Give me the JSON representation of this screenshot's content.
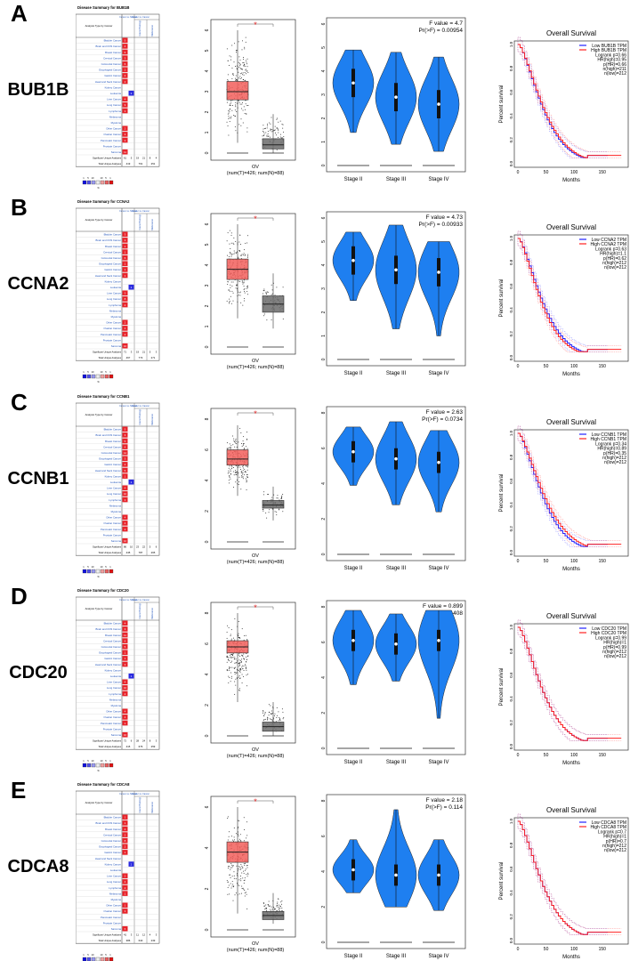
{
  "oncomine_common": {
    "analysis_header": "Analysis Type by Cancer",
    "col_groups": [
      "Cancer vs. Normal",
      "Cancer vs. Cancer"
    ],
    "sub_cols": [
      "Cancer Histology",
      "Multi-cancer"
    ],
    "cancers": [
      "Bladder Cancer",
      "Brain and CNS Cancer",
      "Breast Cancer",
      "Cervical Cancer",
      "Colorectal Cancer",
      "Esophageal Cancer",
      "Gastric Cancer",
      "Head and Neck Cancer",
      "Kidney Cancer",
      "Leukemia",
      "Liver Cancer",
      "Lung Cancer",
      "Lymphoma",
      "Melanoma",
      "Myeloma",
      "Other Cancer",
      "Ovarian Cancer",
      "Pancreatic Cancer",
      "Prostate Cancer",
      "Sarcoma"
    ],
    "sig_label": "Significant Unique Analyses",
    "total_label": "Total Unique Analyses",
    "legend_ticks": [
      "1",
      "5",
      "10",
      "10",
      "5",
      "1"
    ],
    "legend_mid": "%"
  },
  "colors": {
    "up": "#e8232a",
    "down": "#2a2ae0",
    "tumor": "#f25f5c",
    "normal": "#6b6b6b",
    "violin": "#1e7ff0",
    "low": "#2020ff",
    "high": "#ff2020"
  },
  "boxplot_common": {
    "x_label": "OV",
    "n_label": "(num(T)=426; num(N)=88)",
    "sig": "*"
  },
  "violin_common": {
    "stages": [
      "Stage II",
      "Stage III",
      "Stage IV"
    ]
  },
  "km_common": {
    "title": "Overall Survival",
    "xlabel": "Months",
    "ylabel": "Percent survival",
    "xticks": [
      "0",
      "50",
      "100",
      "150"
    ],
    "yticks": [
      "0.0",
      "0.2",
      "0.4",
      "0.6",
      "0.8",
      "1.0"
    ]
  },
  "panels": [
    {
      "letter": "A",
      "gene": "BUB1B",
      "title": "Disease Summary for BUB1B",
      "cells": [
        [
          0,
          "5",
          "r"
        ],
        [
          0,
          "4",
          "r"
        ],
        [
          0,
          "6",
          "r"
        ],
        [
          0,
          "3",
          "r"
        ],
        [
          0,
          "6",
          "r"
        ],
        [
          0,
          "2",
          "r"
        ],
        [
          0,
          "2",
          "r"
        ],
        [
          0,
          "2",
          "r"
        ],
        [],
        [
          1,
          "3",
          "b"
        ],
        [
          0,
          "4",
          "r"
        ],
        [
          0,
          "9",
          "r"
        ],
        [
          0,
          "3",
          "r"
        ],
        [],
        [],
        [
          0,
          "2",
          "r"
        ],
        [
          0,
          "3",
          "r"
        ],
        [
          0,
          "3",
          "r"
        ],
        [],
        [
          0,
          "11",
          "r"
        ]
      ],
      "sig": [
        "61",
        "5",
        "19",
        "21",
        "8",
        "4"
      ],
      "total": [
        "419",
        "761",
        "251"
      ],
      "chart_data": [
        {
          "type": "box",
          "ylim": [
            0,
            6
          ],
          "yticks": [
            "0",
            "1",
            "2",
            "3",
            "4",
            "5",
            "6"
          ],
          "tumor": {
            "min": 0.5,
            "q1": 2.6,
            "median": 3.0,
            "q3": 3.5,
            "max": 6.0
          },
          "normal": {
            "min": 0.0,
            "q1": 0.2,
            "median": 0.4,
            "q3": 0.7,
            "max": 1.9
          }
        },
        {
          "type": "violin",
          "ylim": [
            0,
            6
          ],
          "yticks": [
            "0",
            "1",
            "2",
            "3",
            "4",
            "5",
            "6"
          ],
          "f_label": "F value = 4.7",
          "p_label": "Pr(>F) = 0.00954",
          "medians": [
            3.5,
            2.9,
            2.6
          ],
          "ranges": [
            [
              1.4,
              4.9
            ],
            [
              0.9,
              4.8
            ],
            [
              0.6,
              4.6
            ]
          ]
        },
        {
          "type": "km",
          "legend": [
            "Low BUB1B TPM",
            "High BUB1B TPM",
            "Logrank p=0.66",
            "HR(high)=0.95",
            "p(HR)=0.66",
            "n(high)=211",
            "n(low)=212"
          ],
          "hr": 0.95
        }
      ]
    },
    {
      "letter": "B",
      "gene": "CCNA2",
      "title": "Disease Summary for CCNA2",
      "cells": [
        [
          0,
          "3",
          "r"
        ],
        [
          0,
          "3",
          "r"
        ],
        [
          0,
          "1",
          "r"
        ],
        [
          0,
          "1",
          "r"
        ],
        [
          0,
          "6",
          "r"
        ],
        [
          0,
          "1",
          "r"
        ],
        [
          0,
          "1",
          "r"
        ],
        [
          0,
          "1",
          "r"
        ],
        [],
        [
          1,
          "1",
          "b"
        ],
        [
          0,
          "3",
          "r"
        ],
        [
          0,
          "8",
          "r"
        ],
        [
          0,
          "2",
          "r"
        ],
        [],
        [],
        [
          0,
          "2",
          "r"
        ],
        [
          0,
          "4",
          "r"
        ],
        [
          0,
          "2",
          "r"
        ],
        [],
        [
          0,
          "10",
          "r"
        ]
      ],
      "sig": [
        "71",
        "3",
        "19",
        "21",
        "5",
        "3"
      ],
      "total": [
        "467",
        "773",
        "271"
      ],
      "chart_data": [
        {
          "type": "box",
          "ylim": [
            0,
            6
          ],
          "yticks": [
            "0",
            "1",
            "2",
            "3",
            "4",
            "5",
            "6"
          ],
          "tumor": {
            "min": 1.4,
            "q1": 3.3,
            "median": 3.8,
            "q3": 4.3,
            "max": 6.0
          },
          "normal": {
            "min": 0.9,
            "q1": 1.7,
            "median": 2.1,
            "q3": 2.5,
            "max": 3.6
          }
        },
        {
          "type": "violin",
          "ylim": [
            0,
            6
          ],
          "yticks": [
            "0",
            "1",
            "2",
            "3",
            "4",
            "5",
            "6"
          ],
          "f_label": "F value = 4.73",
          "p_label": "Pr(>F) = 0.00933",
          "medians": [
            4.2,
            3.8,
            3.7
          ],
          "ranges": [
            [
              2.5,
              5.4
            ],
            [
              1.3,
              5.7
            ],
            [
              1.0,
              5.0
            ]
          ]
        },
        {
          "type": "km",
          "legend": [
            "Low CCNA2 TPM",
            "High CCNA2 TPM",
            "Logrank p=0.63",
            "HR(high)=1.1",
            "p(HR)=0.62",
            "n(high)=212",
            "n(low)=212"
          ],
          "hr": 1.1
        }
      ]
    },
    {
      "letter": "C",
      "gene": "CCNB1",
      "title": "Disease Summary for CCNB1",
      "cells": [
        [
          0,
          "5",
          "r"
        ],
        [
          0,
          "3",
          "r"
        ],
        [
          0,
          "5",
          "r"
        ],
        [
          0,
          "4",
          "r"
        ],
        [
          0,
          "12",
          "r"
        ],
        [
          0,
          "3",
          "r"
        ],
        [
          0,
          "2",
          "r"
        ],
        [
          0,
          "5",
          "r"
        ],
        [
          0,
          "1",
          "r"
        ],
        [
          1,
          "1",
          "b"
        ],
        [
          0,
          "4",
          "r"
        ],
        [
          0,
          "10",
          "r"
        ],
        [
          0,
          "3",
          "r"
        ],
        [],
        [],
        [
          0,
          "4",
          "r"
        ],
        [
          0,
          "4",
          "r"
        ],
        [
          0,
          "2",
          "r"
        ],
        [],
        [
          0,
          "10",
          "r"
        ]
      ],
      "sig": [
        "86",
        "10",
        "23",
        "22",
        "5",
        "6"
      ],
      "total": [
        "445",
        "787",
        "265"
      ],
      "chart_data": [
        {
          "type": "box",
          "ylim": [
            0,
            8
          ],
          "yticks": [
            "0",
            "2",
            "4",
            "6",
            "8"
          ],
          "tumor": {
            "min": 3.0,
            "q1": 5.0,
            "median": 5.4,
            "q3": 6.0,
            "max": 7.6
          },
          "normal": {
            "min": 1.4,
            "q1": 2.2,
            "median": 2.4,
            "q3": 2.7,
            "max": 3.6
          }
        },
        {
          "type": "violin",
          "ylim": [
            0,
            8
          ],
          "yticks": [
            "0",
            "2",
            "4",
            "6",
            "8"
          ],
          "f_label": "F value = 2.63",
          "p_label": "Pr(>F) = 0.0734",
          "medians": [
            5.8,
            5.4,
            5.2
          ],
          "ranges": [
            [
              3.9,
              7.2
            ],
            [
              2.8,
              7.5
            ],
            [
              2.4,
              7.0
            ]
          ]
        },
        {
          "type": "km",
          "legend": [
            "Low CCNB1 TPM",
            "High CCNB1 TPM",
            "Logrank p=0.34",
            "HR(high)=0.89",
            "p(HR)=0.35",
            "n(high)=212",
            "n(low)=212"
          ],
          "hr": 0.89
        }
      ]
    },
    {
      "letter": "D",
      "gene": "CDC20",
      "title": "Disease Summary for CDC20",
      "cells": [
        [
          0,
          "4",
          "r"
        ],
        [
          0,
          "3",
          "r"
        ],
        [
          0,
          "11",
          "r"
        ],
        [
          0,
          "4",
          "r"
        ],
        [
          0,
          "5",
          "r"
        ],
        [
          0,
          "1",
          "r"
        ],
        [
          0,
          "1",
          "r"
        ],
        [
          0,
          "3",
          "r"
        ],
        [],
        [
          1,
          "1",
          "b"
        ],
        [
          0,
          "4",
          "r"
        ],
        [
          0,
          "10",
          "r"
        ],
        [
          0,
          "2",
          "r"
        ],
        [],
        [],
        [
          0,
          "4",
          "r"
        ],
        [
          0,
          "4",
          "r"
        ],
        [
          0,
          "1",
          "r"
        ],
        [],
        [
          0,
          "10",
          "r"
        ]
      ],
      "sig": [
        "72",
        "6",
        "28",
        "24",
        "8",
        "3"
      ],
      "total": [
        "415",
        "676",
        "259"
      ],
      "chart_data": [
        {
          "type": "box",
          "ylim": [
            0,
            8
          ],
          "yticks": [
            "0",
            "2",
            "4",
            "6",
            "8"
          ],
          "tumor": {
            "min": 2.2,
            "q1": 5.4,
            "median": 5.8,
            "q3": 6.2,
            "max": 8.0
          },
          "normal": {
            "min": 0.0,
            "q1": 0.3,
            "median": 0.6,
            "q3": 0.9,
            "max": 2.2
          }
        },
        {
          "type": "violin",
          "ylim": [
            0,
            8
          ],
          "yticks": [
            "0",
            "2",
            "4",
            "6",
            "8"
          ],
          "f_label": "F value = 0.899",
          "p_label": "Pr(>F) = 0.408",
          "medians": [
            6.1,
            5.9,
            6.1
          ],
          "ranges": [
            [
              3.6,
              7.8
            ],
            [
              3.8,
              7.6
            ],
            [
              1.7,
              7.8
            ]
          ]
        },
        {
          "type": "km",
          "legend": [
            "Low CDC20 TPM",
            "High CDC20 TPM",
            "Logrank p=0.99",
            "HR(high)=1",
            "p(HR)=0.99",
            "n(high)=212",
            "n(low)=212"
          ],
          "hr": 1.0
        }
      ]
    },
    {
      "letter": "E",
      "gene": "CDCA8",
      "title": "Disease Summary for CDCA8",
      "cells": [
        [
          0,
          "1",
          "r"
        ],
        [
          0,
          "1",
          "r"
        ],
        [
          0,
          "4",
          "r"
        ],
        [
          0,
          "2",
          "r"
        ],
        [
          0,
          "8",
          "r"
        ],
        [
          0,
          "2",
          "r"
        ],
        [
          0,
          "1",
          "r"
        ],
        [],
        [
          1,
          "2",
          "b"
        ],
        [],
        [
          0,
          "2",
          "r"
        ],
        [
          0,
          "4",
          "r"
        ],
        [
          0,
          "2",
          "r"
        ],
        [
          0,
          "1",
          "r"
        ],
        [],
        [
          0,
          "1",
          "r"
        ],
        [
          0,
          "3",
          "r"
        ],
        [],
        [],
        [
          0,
          "6",
          "r"
        ]
      ],
      "sig": [
        "41",
        "3",
        "11",
        "12",
        "4",
        "3"
      ],
      "total": [
        "386",
        "640",
        "239"
      ],
      "chart_data": [
        {
          "type": "box",
          "ylim": [
            0,
            6
          ],
          "yticks": [
            "0",
            "2",
            "4",
            "6"
          ],
          "tumor": {
            "min": 0.8,
            "q1": 3.3,
            "median": 3.8,
            "q3": 4.3,
            "max": 6.0
          },
          "normal": {
            "min": 0.3,
            "q1": 0.5,
            "median": 0.7,
            "q3": 0.9,
            "max": 1.8
          }
        },
        {
          "type": "violin",
          "ylim": [
            0,
            8
          ],
          "yticks": [
            "0",
            "2",
            "4",
            "6",
            "8"
          ],
          "f_label": "F value = 2.18",
          "p_label": "Pr(>F) = 0.114",
          "medians": [
            4.1,
            3.8,
            3.8
          ],
          "ranges": [
            [
              2.8,
              5.8
            ],
            [
              2.0,
              7.5
            ],
            [
              1.8,
              5.8
            ]
          ]
        },
        {
          "type": "km",
          "legend": [
            "Low CDCA8 TPM",
            "High CDCA8 TPM",
            "Logrank p=0.7",
            "HR(high)=1",
            "p(HR)=0.7",
            "n(high)=212",
            "n(low)=212"
          ],
          "hr": 1.0
        }
      ]
    }
  ]
}
